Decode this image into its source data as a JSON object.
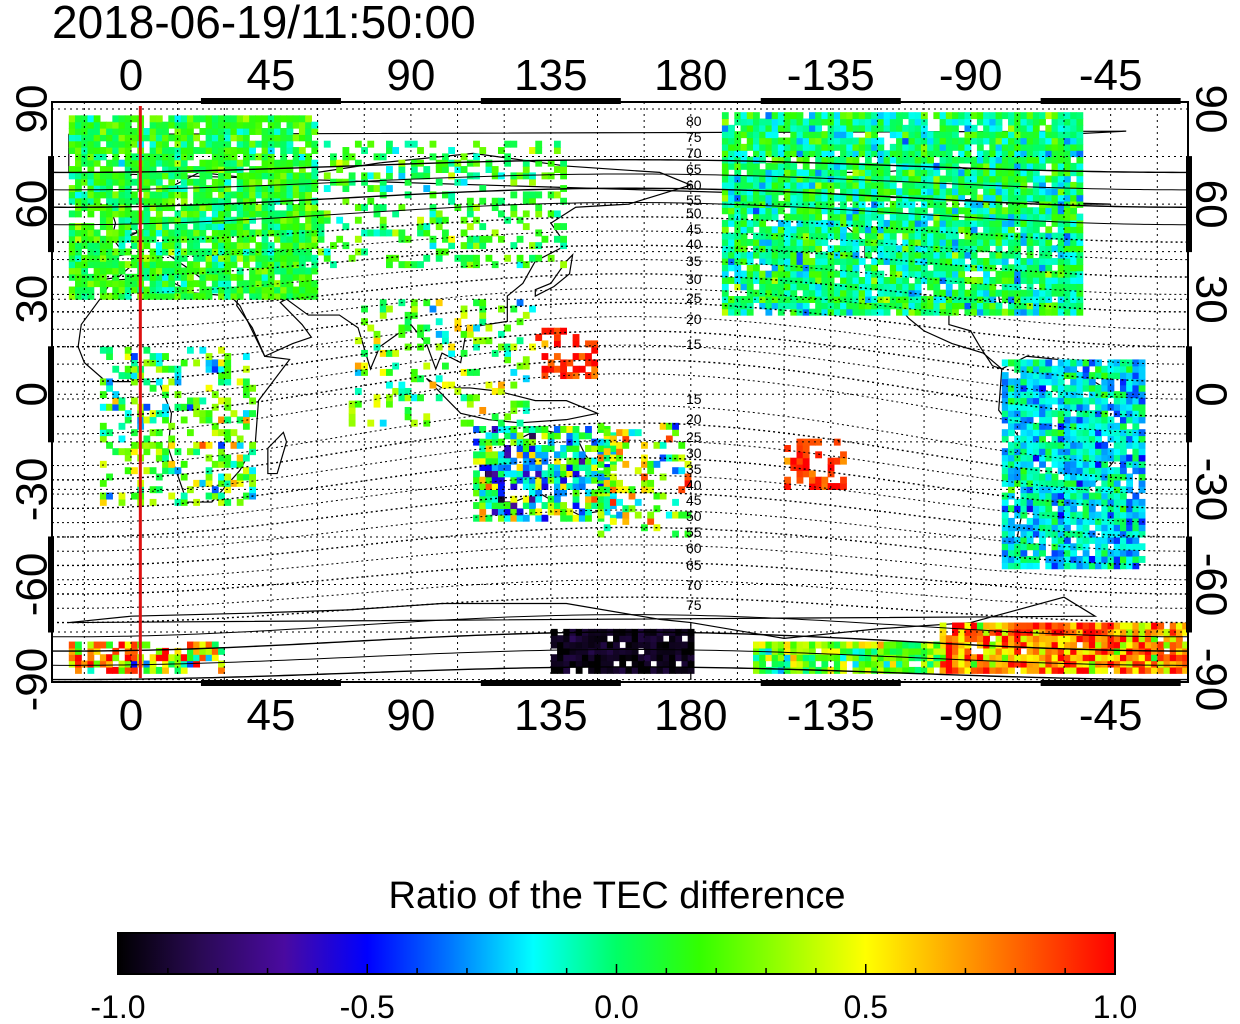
{
  "title": "2018-06-19/11:50:00",
  "map": {
    "top_axis_labels": [
      "0",
      "45",
      "90",
      "135",
      "180",
      "-135",
      "-90",
      "-45"
    ],
    "bottom_axis_labels": [
      "0",
      "45",
      "90",
      "135",
      "180",
      "-135",
      "-90",
      "-45"
    ],
    "left_axis_labels": [
      "90",
      "60",
      "30",
      "0",
      "-30",
      "-60",
      "-90"
    ],
    "right_axis_labels": [
      "90",
      "60",
      "30",
      "0",
      "-30",
      "-60",
      "-90"
    ],
    "north_contour_labels": [
      "80",
      "75",
      "70",
      "65",
      "60",
      "55",
      "50",
      "45",
      "40",
      "35",
      "30",
      "25",
      "20",
      "15"
    ],
    "south_contour_labels": [
      "15",
      "20",
      "25",
      "30",
      "35",
      "40",
      "45",
      "50",
      "55",
      "60",
      "65",
      "70",
      "75"
    ],
    "marker_line_color": "#dd1111",
    "marker_longitude": 3
  },
  "colorbar": {
    "title": "Ratio of the TEC difference",
    "tick_labels": [
      "-1.0",
      "-0.5",
      "0.0",
      "0.5",
      "1.0"
    ],
    "range": [
      -1.0,
      1.0
    ],
    "colormap": [
      "#000000",
      "#2a0a55",
      "#4a0aa0",
      "#0000ff",
      "#0077ff",
      "#00ffff",
      "#00ff66",
      "#33ff00",
      "#99ff00",
      "#ffff00",
      "#ffaa00",
      "#ff5500",
      "#ff0000"
    ]
  }
}
